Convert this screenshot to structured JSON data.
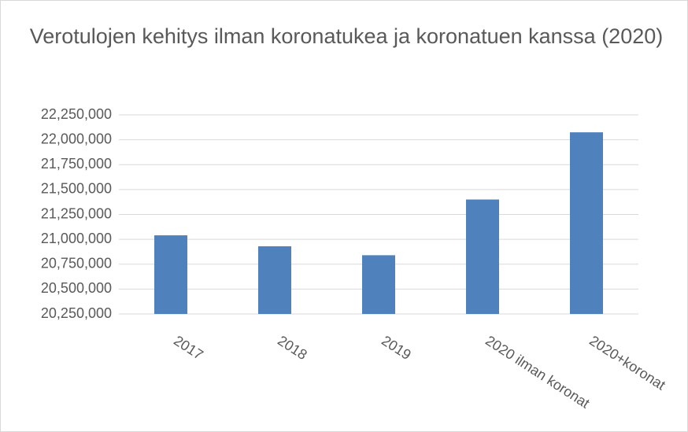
{
  "chart_data": {
    "type": "bar",
    "title": "Verotulojen  kehitys ilman koronatukea ja koronatuen kanssa (2020)",
    "categories": [
      "2017",
      "2018",
      "2019",
      "2020 ilman koronat",
      "2020+koronat"
    ],
    "values": [
      21040000,
      20930000,
      20840000,
      21400000,
      22075000
    ],
    "color": "#4f81bd",
    "ylim": [
      20250000,
      22250000
    ],
    "yticks": [
      {
        "value": 20250000,
        "label": "20,250,000"
      },
      {
        "value": 20500000,
        "label": "20,500,000"
      },
      {
        "value": 20750000,
        "label": "20,750,000"
      },
      {
        "value": 21000000,
        "label": "21,000,000"
      },
      {
        "value": 21250000,
        "label": "21,250,000"
      },
      {
        "value": 21500000,
        "label": "21,500,000"
      },
      {
        "value": 21750000,
        "label": "21,750,000"
      },
      {
        "value": 22000000,
        "label": "22,000,000"
      },
      {
        "value": 22250000,
        "label": "22,250,000"
      }
    ],
    "grid": true
  }
}
